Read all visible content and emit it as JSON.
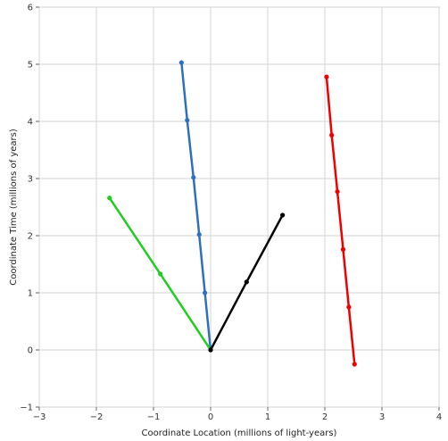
{
  "chart_data": {
    "type": "line",
    "title": "",
    "xlabel": "Coordinate Location (millions of light-years)",
    "ylabel": "Coordinate Time (millions of years)",
    "xlim": [
      -3,
      4
    ],
    "ylim": [
      -1,
      6
    ],
    "xticks": [
      "-3",
      "-2",
      "-1",
      "0",
      "1",
      "2",
      "3",
      "4"
    ],
    "yticks": [
      "-1",
      "0",
      "1",
      "2",
      "3",
      "4",
      "5",
      "6"
    ],
    "grid": true,
    "legend": "none",
    "series": [
      {
        "color": "#2f6fbf",
        "points": [
          [
            0,
            0
          ],
          [
            -0.1,
            1.0
          ],
          [
            -0.2,
            2.02
          ],
          [
            -0.3,
            3.02
          ],
          [
            -0.41,
            4.02
          ],
          [
            -0.51,
            5.03
          ]
        ]
      },
      {
        "color": "#22cc22",
        "points": [
          [
            0,
            0
          ],
          [
            -0.88,
            1.33
          ],
          [
            -1.77,
            2.66
          ]
        ]
      },
      {
        "color": "#000000",
        "points": [
          [
            0,
            0
          ],
          [
            0.63,
            1.19
          ],
          [
            1.26,
            2.36
          ]
        ]
      },
      {
        "color": "#ee0000",
        "points": [
          [
            2.03,
            4.78
          ],
          [
            2.12,
            3.76
          ],
          [
            2.22,
            2.77
          ],
          [
            2.32,
            1.76
          ],
          [
            2.42,
            0.75
          ],
          [
            2.52,
            -0.25
          ]
        ]
      }
    ]
  }
}
